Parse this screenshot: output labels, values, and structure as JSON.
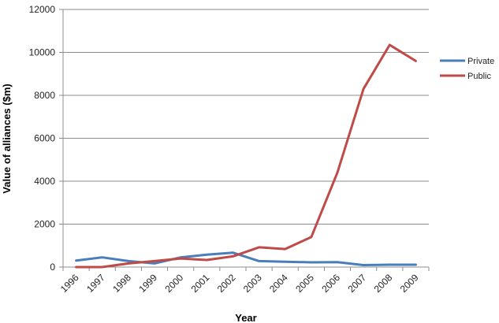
{
  "chart_data": {
    "type": "line",
    "title": "",
    "xlabel": "Year",
    "ylabel": "Value of alliances ($m)",
    "ylim": [
      0,
      12000
    ],
    "yticks": [
      0,
      2000,
      4000,
      6000,
      8000,
      10000,
      12000
    ],
    "grid": "horizontal",
    "legend": "right",
    "x": [
      "1996",
      "1997",
      "1998",
      "1999",
      "2000",
      "2001",
      "2002",
      "2003",
      "2004",
      "2005",
      "2006",
      "2007",
      "2008",
      "2009"
    ],
    "series": [
      {
        "name": "Private",
        "color": "#4a7ebb",
        "values": [
          300,
          450,
          280,
          170,
          450,
          580,
          670,
          280,
          250,
          220,
          230,
          90,
          110,
          110
        ]
      },
      {
        "name": "Public",
        "color": "#be4b48",
        "values": [
          0,
          0,
          170,
          280,
          400,
          330,
          500,
          920,
          840,
          1400,
          4400,
          8300,
          10350,
          9600
        ]
      }
    ]
  }
}
